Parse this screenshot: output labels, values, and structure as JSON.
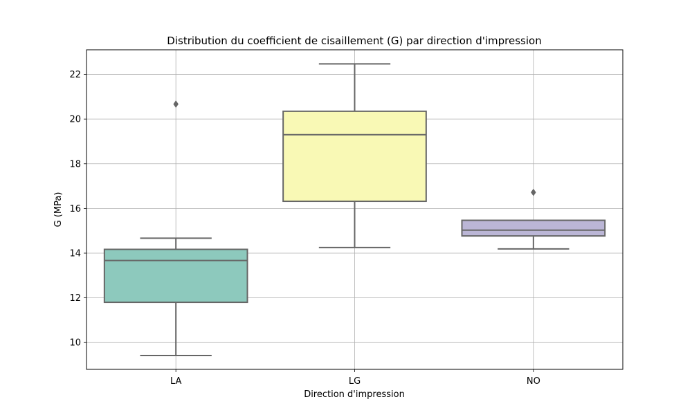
{
  "chart_data": {
    "type": "box",
    "title": "Distribution du coefficient de cisaillement (G) par direction d'impression",
    "xlabel": "Direction d'impression",
    "ylabel": "G (MPa)",
    "categories": [
      "LA",
      "LG",
      "NO"
    ],
    "ylim": [
      8.8,
      23.1
    ],
    "yticks": [
      10,
      12,
      14,
      16,
      18,
      20,
      22
    ],
    "grid": true,
    "boxes": [
      {
        "category": "LA",
        "whisker_low": 9.42,
        "q1": 11.8,
        "median": 13.67,
        "q3": 14.17,
        "whisker_high": 14.67,
        "outliers": [
          20.67
        ],
        "color": "#8dc9bd"
      },
      {
        "category": "LG",
        "whisker_low": 14.25,
        "q1": 16.32,
        "median": 19.3,
        "q3": 20.35,
        "whisker_high": 22.47,
        "outliers": [],
        "color": "#f9f9b5"
      },
      {
        "category": "NO",
        "whisker_low": 14.19,
        "q1": 14.77,
        "median": 15.03,
        "q3": 15.47,
        "whisker_high": 15.47,
        "outliers": [
          16.72
        ],
        "color": "#bbb6d6"
      }
    ]
  }
}
